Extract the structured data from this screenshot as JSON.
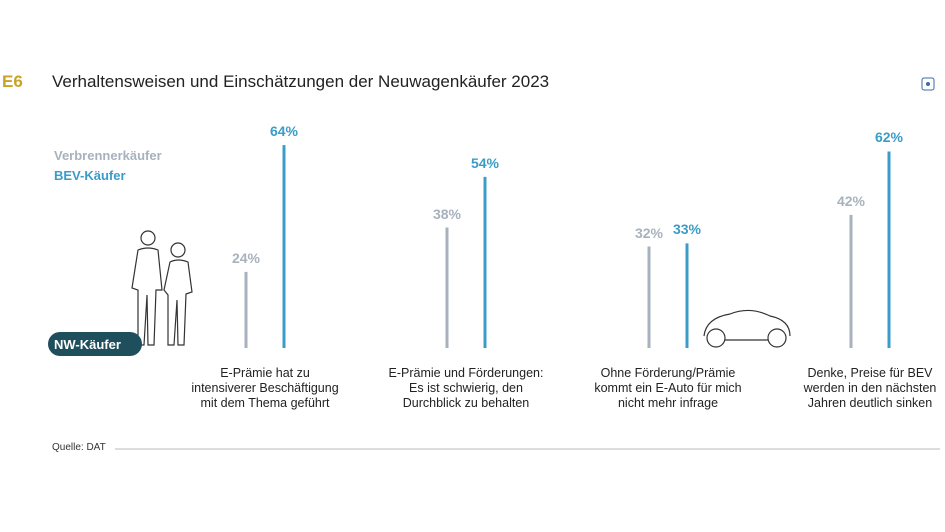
{
  "chart_data": {
    "type": "bar",
    "label": "E6",
    "title": "Verhaltensweisen und Einschätzungen der Neuwagenkäufer 2023",
    "categories": [
      "E-Prämie hat zu\nintensiverer Beschäftigung\nmit dem Thema geführt",
      "E-Prämie und Förderungen:\nEs ist schwierig, den\nDurchblick zu behalten",
      "Ohne Förderung/Prämie\nkommt ein E-Auto für mich\nnicht mehr infrage",
      "Denke, Preise für BEV\nwerden in den nächsten\nJahren deutlich sinken"
    ],
    "series": [
      {
        "name": "Verbrennerkäufer",
        "color": "#a7b2be",
        "values": [
          24,
          38,
          32,
          42
        ],
        "value_labels": [
          "24%",
          "38%",
          "32%",
          "42%"
        ]
      },
      {
        "name": "BEV-Käufer",
        "color": "#3a9cc8",
        "values": [
          64,
          54,
          33,
          62
        ],
        "value_labels": [
          "64%",
          "54%",
          "33%",
          "62%"
        ]
      }
    ],
    "group_label": "NW-Käufer",
    "source": "Quelle: DAT"
  }
}
